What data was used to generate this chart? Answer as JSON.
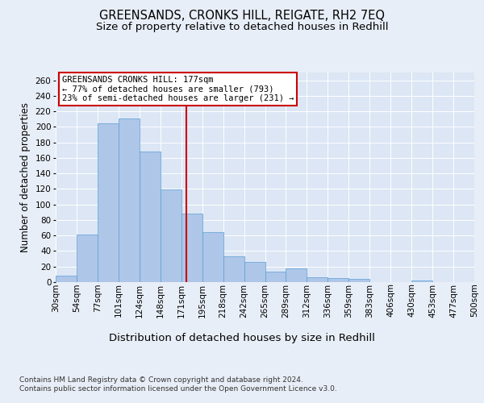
{
  "title": "GREENSANDS, CRONKS HILL, REIGATE, RH2 7EQ",
  "subtitle": "Size of property relative to detached houses in Redhill",
  "xlabel": "Distribution of detached houses by size in Redhill",
  "ylabel": "Number of detached properties",
  "bar_values": [
    8,
    61,
    205,
    211,
    168,
    119,
    88,
    64,
    33,
    26,
    14,
    18,
    6,
    5,
    4,
    0,
    0,
    2,
    0,
    0
  ],
  "bin_labels": [
    "30sqm",
    "54sqm",
    "77sqm",
    "101sqm",
    "124sqm",
    "148sqm",
    "171sqm",
    "195sqm",
    "218sqm",
    "242sqm",
    "265sqm",
    "289sqm",
    "312sqm",
    "336sqm",
    "359sqm",
    "383sqm",
    "406sqm",
    "430sqm",
    "453sqm",
    "477sqm",
    "500sqm"
  ],
  "bar_color": "#aec6e8",
  "bar_edge_color": "#5a9fd4",
  "background_color": "#e8eef7",
  "plot_bg_color": "#dce6f5",
  "grid_color": "#ffffff",
  "vline_color": "#cc0000",
  "annotation_box_color": "#cc0000",
  "annotation_text_line1": "GREENSANDS CRONKS HILL: 177sqm",
  "annotation_text_line2": "← 77% of detached houses are smaller (793)",
  "annotation_text_line3": "23% of semi-detached houses are larger (231) →",
  "ylim": [
    0,
    270
  ],
  "yticks": [
    0,
    20,
    40,
    60,
    80,
    100,
    120,
    140,
    160,
    180,
    200,
    220,
    240,
    260
  ],
  "footer_text": "Contains HM Land Registry data © Crown copyright and database right 2024.\nContains public sector information licensed under the Open Government Licence v3.0.",
  "title_fontsize": 10.5,
  "subtitle_fontsize": 9.5,
  "ylabel_fontsize": 8.5,
  "xlabel_fontsize": 9.5,
  "tick_fontsize": 7.5,
  "annotation_fontsize": 7.5,
  "footer_fontsize": 6.5
}
